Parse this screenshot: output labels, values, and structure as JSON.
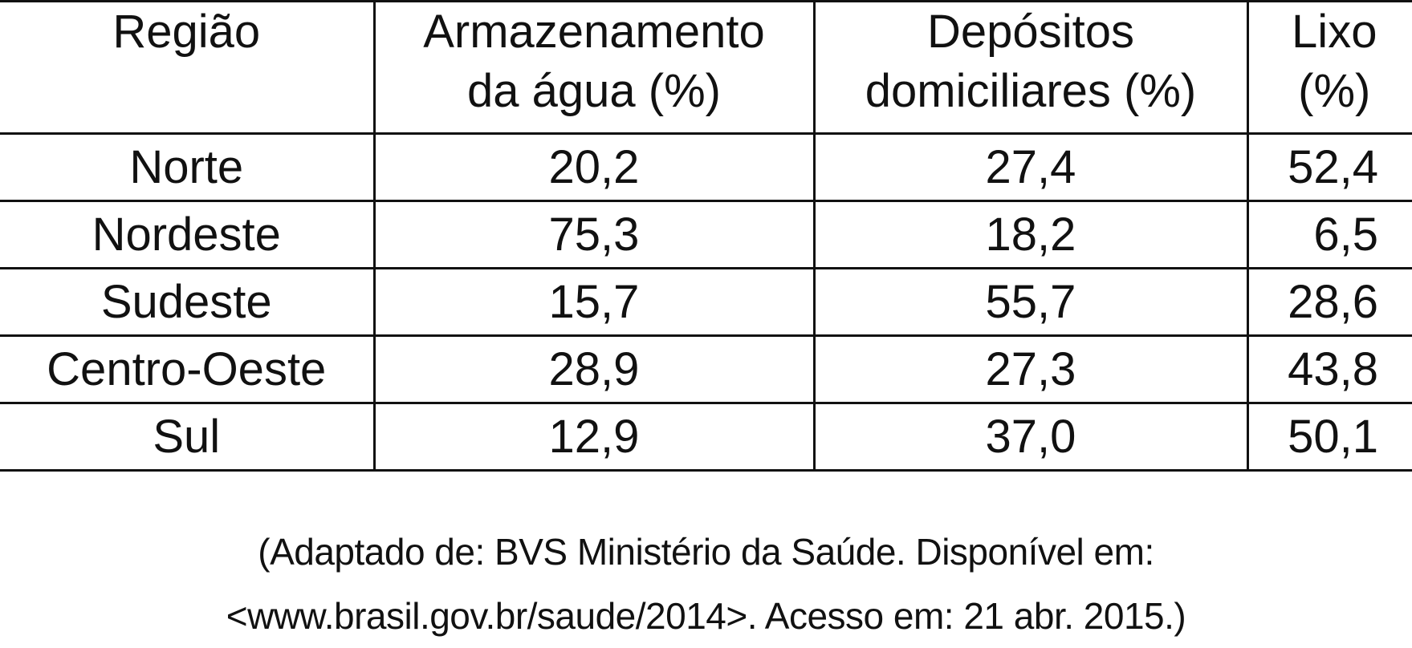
{
  "table": {
    "headers": [
      {
        "line1": "Região",
        "line2": ""
      },
      {
        "line1": "Armazenamento",
        "line2": "da água (%)"
      },
      {
        "line1": "Depósitos",
        "line2": "domiciliares (%)"
      },
      {
        "line1": "Lixo",
        "line2": "(%)"
      }
    ],
    "rows": [
      [
        "Norte",
        "20,2",
        "27,4",
        "52,4"
      ],
      [
        "Nordeste",
        "75,3",
        "18,2",
        "6,5"
      ],
      [
        "Sudeste",
        "15,7",
        "55,7",
        "28,6"
      ],
      [
        "Centro-Oeste",
        "28,9",
        "27,3",
        "43,8"
      ],
      [
        "Sul",
        "12,9",
        "37,0",
        "50,1"
      ]
    ]
  },
  "source": {
    "line1": "(Adaptado de: BVS Ministério da Saúde. Disponível em:",
    "line2": "<www.brasil.gov.br/saude/2014>. Acesso em: 21 abr. 2015.)"
  }
}
